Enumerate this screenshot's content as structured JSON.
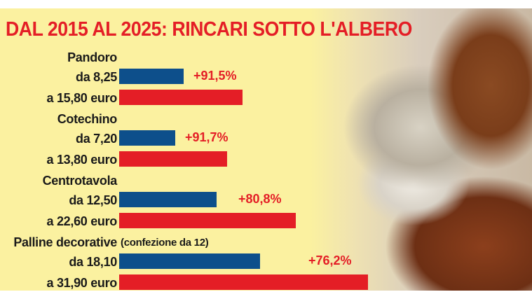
{
  "chart_data": {
    "type": "bar",
    "title": "DAL 2015 AL 2025: RINCARI SOTTO L'ALBERO",
    "unit": "euro",
    "colors": {
      "2015": "#0d4f8b",
      "2025": "#e41e26",
      "title": "#e41e26",
      "background": "#fbf1a0"
    },
    "items": [
      {
        "name": "Pandoro",
        "note": "",
        "from_label": "da 8,25",
        "to_label": "a 15,80 euro",
        "from": 8.25,
        "to": 15.8,
        "change_label": "+91,5%"
      },
      {
        "name": "Cotechino",
        "note": "",
        "from_label": "da 7,20",
        "to_label": "a 13,80 euro",
        "from": 7.2,
        "to": 13.8,
        "change_label": "+91,7%"
      },
      {
        "name": "Centrotavola",
        "note": "",
        "from_label": "da 12,50",
        "to_label": "a 22,60 euro",
        "from": 12.5,
        "to": 22.6,
        "change_label": "+80,8%"
      },
      {
        "name": "Palline decorative",
        "note": "(confezione da 12)",
        "from_label": "da 18,10",
        "to_label": "a 31,90 euro",
        "from": 18.1,
        "to": 31.9,
        "change_label": "+76,2%"
      }
    ]
  }
}
